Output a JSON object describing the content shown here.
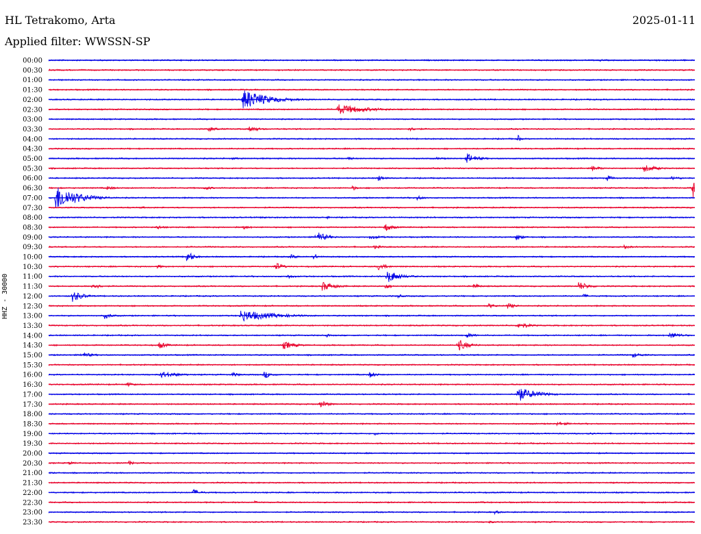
{
  "header": {
    "station": "HL Tetrakomo, Arta",
    "date": "2025-01-11",
    "filter": "Applied filter: WWSSN-SP"
  },
  "channel_label": "HHZ - 30000",
  "colors": {
    "even": "#0000e6",
    "odd": "#e8002a"
  },
  "chart_data": {
    "type": "line",
    "title": "",
    "rows": [
      "00:00",
      "00:30",
      "01:00",
      "01:30",
      "02:00",
      "02:30",
      "03:00",
      "03:30",
      "04:00",
      "04:30",
      "05:00",
      "05:30",
      "06:00",
      "06:30",
      "07:00",
      "07:30",
      "08:00",
      "08:30",
      "09:00",
      "09:30",
      "10:00",
      "10:30",
      "11:00",
      "11:30",
      "12:00",
      "12:30",
      "13:00",
      "13:30",
      "14:00",
      "14:30",
      "15:00",
      "15:30",
      "16:00",
      "16:30",
      "17:00",
      "17:30",
      "18:00",
      "18:30",
      "19:00",
      "19:30",
      "20:00",
      "20:30",
      "21:00",
      "21:30",
      "22:00",
      "22:30",
      "23:00",
      "23:30"
    ],
    "row_minutes": 30,
    "events": [
      {
        "row": "00:00",
        "minute": 25.5,
        "amp": 2,
        "dur": 0.8
      },
      {
        "row": "00:00",
        "minute": 28.2,
        "amp": 1.5,
        "dur": 0.8
      },
      {
        "row": "01:30",
        "minute": 28.9,
        "amp": 1.5,
        "dur": 0.3
      },
      {
        "row": "02:00",
        "minute": 9.0,
        "amp": 16,
        "dur": 1.8
      },
      {
        "row": "02:30",
        "minute": 13.4,
        "amp": 8,
        "dur": 2.2
      },
      {
        "row": "02:30",
        "minute": 25.0,
        "amp": 2,
        "dur": 0.3
      },
      {
        "row": "03:30",
        "minute": 7.4,
        "amp": 4,
        "dur": 0.8
      },
      {
        "row": "03:30",
        "minute": 9.3,
        "amp": 5,
        "dur": 0.8
      },
      {
        "row": "03:30",
        "minute": 16.7,
        "amp": 3,
        "dur": 1.0
      },
      {
        "row": "04:00",
        "minute": 21.8,
        "amp": 6,
        "dur": 0.2
      },
      {
        "row": "05:00",
        "minute": 8.5,
        "amp": 2,
        "dur": 1.0
      },
      {
        "row": "05:00",
        "minute": 13.9,
        "amp": 3,
        "dur": 0.5
      },
      {
        "row": "05:00",
        "minute": 18.0,
        "amp": 2,
        "dur": 1.0
      },
      {
        "row": "05:00",
        "minute": 19.4,
        "amp": 8,
        "dur": 0.8
      },
      {
        "row": "05:30",
        "minute": 25.2,
        "amp": 4,
        "dur": 0.8
      },
      {
        "row": "05:30",
        "minute": 27.6,
        "amp": 6,
        "dur": 1.0
      },
      {
        "row": "06:00",
        "minute": 15.3,
        "amp": 5,
        "dur": 0.5
      },
      {
        "row": "06:00",
        "minute": 25.9,
        "amp": 5,
        "dur": 0.5
      },
      {
        "row": "06:00",
        "minute": 28.9,
        "amp": 3,
        "dur": 1.0
      },
      {
        "row": "06:30",
        "minute": 2.7,
        "amp": 3,
        "dur": 0.8
      },
      {
        "row": "06:30",
        "minute": 7.2,
        "amp": 3,
        "dur": 0.8
      },
      {
        "row": "06:30",
        "minute": 14.1,
        "amp": 4,
        "dur": 0.4
      },
      {
        "row": "06:30",
        "minute": 29.9,
        "amp": 18,
        "dur": 0.2
      },
      {
        "row": "07:00",
        "minute": 0.3,
        "amp": 20,
        "dur": 1.6
      },
      {
        "row": "07:00",
        "minute": 17.1,
        "amp": 4,
        "dur": 0.5
      },
      {
        "row": "07:30",
        "minute": 4.3,
        "amp": 2,
        "dur": 0.5
      },
      {
        "row": "08:00",
        "minute": 9.9,
        "amp": 3,
        "dur": 0.5
      },
      {
        "row": "08:00",
        "minute": 12.9,
        "amp": 2,
        "dur": 0.5
      },
      {
        "row": "08:30",
        "minute": 5.0,
        "amp": 4,
        "dur": 0.6
      },
      {
        "row": "08:30",
        "minute": 9.0,
        "amp": 4,
        "dur": 0.6
      },
      {
        "row": "08:30",
        "minute": 15.6,
        "amp": 7,
        "dur": 0.6
      },
      {
        "row": "09:00",
        "minute": 12.4,
        "amp": 9,
        "dur": 0.8
      },
      {
        "row": "09:00",
        "minute": 14.9,
        "amp": 3,
        "dur": 1.2
      },
      {
        "row": "09:00",
        "minute": 21.7,
        "amp": 6,
        "dur": 0.5
      },
      {
        "row": "09:30",
        "minute": 15.1,
        "amp": 3,
        "dur": 0.8
      },
      {
        "row": "09:30",
        "minute": 26.7,
        "amp": 4,
        "dur": 0.5
      },
      {
        "row": "10:00",
        "minute": 6.4,
        "amp": 10,
        "dur": 0.5
      },
      {
        "row": "10:00",
        "minute": 11.2,
        "amp": 4,
        "dur": 0.6
      },
      {
        "row": "10:00",
        "minute": 12.3,
        "amp": 5,
        "dur": 0.4
      },
      {
        "row": "10:30",
        "minute": 5.0,
        "amp": 3,
        "dur": 0.6
      },
      {
        "row": "10:30",
        "minute": 10.5,
        "amp": 7,
        "dur": 0.6
      },
      {
        "row": "10:30",
        "minute": 15.3,
        "amp": 6,
        "dur": 0.7
      },
      {
        "row": "11:00",
        "minute": 11.1,
        "amp": 4,
        "dur": 0.5
      },
      {
        "row": "11:00",
        "minute": 15.7,
        "amp": 10,
        "dur": 1.0
      },
      {
        "row": "11:30",
        "minute": 2.0,
        "amp": 5,
        "dur": 0.7
      },
      {
        "row": "11:30",
        "minute": 12.7,
        "amp": 7,
        "dur": 1.0
      },
      {
        "row": "11:30",
        "minute": 15.6,
        "amp": 5,
        "dur": 0.5
      },
      {
        "row": "11:30",
        "minute": 19.7,
        "amp": 5,
        "dur": 0.5
      },
      {
        "row": "11:30",
        "minute": 24.6,
        "amp": 7,
        "dur": 0.8
      },
      {
        "row": "12:00",
        "minute": 1.1,
        "amp": 9,
        "dur": 0.8
      },
      {
        "row": "12:00",
        "minute": 16.2,
        "amp": 3,
        "dur": 0.5
      },
      {
        "row": "12:00",
        "minute": 24.8,
        "amp": 3,
        "dur": 0.6
      },
      {
        "row": "12:30",
        "minute": 20.4,
        "amp": 4,
        "dur": 0.6
      },
      {
        "row": "12:30",
        "minute": 21.3,
        "amp": 5,
        "dur": 0.6
      },
      {
        "row": "13:00",
        "minute": 2.6,
        "amp": 5,
        "dur": 0.6
      },
      {
        "row": "13:00",
        "minute": 8.9,
        "amp": 9,
        "dur": 2.5
      },
      {
        "row": "13:30",
        "minute": 21.8,
        "amp": 6,
        "dur": 0.8
      },
      {
        "row": "14:00",
        "minute": 12.9,
        "amp": 3,
        "dur": 0.3
      },
      {
        "row": "14:00",
        "minute": 19.4,
        "amp": 4,
        "dur": 0.8
      },
      {
        "row": "14:00",
        "minute": 28.8,
        "amp": 5,
        "dur": 1.0
      },
      {
        "row": "14:30",
        "minute": 5.1,
        "amp": 6,
        "dur": 0.6
      },
      {
        "row": "14:30",
        "minute": 10.9,
        "amp": 6,
        "dur": 1.0
      },
      {
        "row": "14:30",
        "minute": 19.0,
        "amp": 9,
        "dur": 0.8
      },
      {
        "row": "15:00",
        "minute": 1.5,
        "amp": 5,
        "dur": 0.8
      },
      {
        "row": "15:00",
        "minute": 27.1,
        "amp": 4,
        "dur": 0.8
      },
      {
        "row": "16:00",
        "minute": 5.2,
        "amp": 5,
        "dur": 1.5
      },
      {
        "row": "16:00",
        "minute": 8.5,
        "amp": 4,
        "dur": 0.6
      },
      {
        "row": "16:00",
        "minute": 10.0,
        "amp": 6,
        "dur": 0.6
      },
      {
        "row": "16:00",
        "minute": 14.9,
        "amp": 5,
        "dur": 0.6
      },
      {
        "row": "16:30",
        "minute": 3.6,
        "amp": 4,
        "dur": 0.6
      },
      {
        "row": "17:00",
        "minute": 21.7,
        "amp": 12,
        "dur": 1.4
      },
      {
        "row": "17:30",
        "minute": 12.6,
        "amp": 6,
        "dur": 0.6
      },
      {
        "row": "18:30",
        "minute": 23.6,
        "amp": 3,
        "dur": 1.2
      },
      {
        "row": "19:00",
        "minute": 15.1,
        "amp": 3,
        "dur": 0.4
      },
      {
        "row": "19:00",
        "minute": 25.0,
        "amp": 2,
        "dur": 1.0
      },
      {
        "row": "20:30",
        "minute": 0.9,
        "amp": 3,
        "dur": 0.5
      },
      {
        "row": "20:30",
        "minute": 3.7,
        "amp": 4,
        "dur": 0.5
      },
      {
        "row": "21:00",
        "minute": 0.1,
        "amp": 2,
        "dur": 0.3
      },
      {
        "row": "22:00",
        "minute": 6.7,
        "amp": 5,
        "dur": 0.6
      },
      {
        "row": "22:30",
        "minute": 9.6,
        "amp": 7,
        "dur": 0.1
      },
      {
        "row": "22:30",
        "minute": 20.0,
        "amp": 2,
        "dur": 0.6
      },
      {
        "row": "23:00",
        "minute": 20.7,
        "amp": 3,
        "dur": 0.5
      },
      {
        "row": "23:30",
        "minute": 20.4,
        "amp": 2,
        "dur": 0.8
      }
    ]
  }
}
